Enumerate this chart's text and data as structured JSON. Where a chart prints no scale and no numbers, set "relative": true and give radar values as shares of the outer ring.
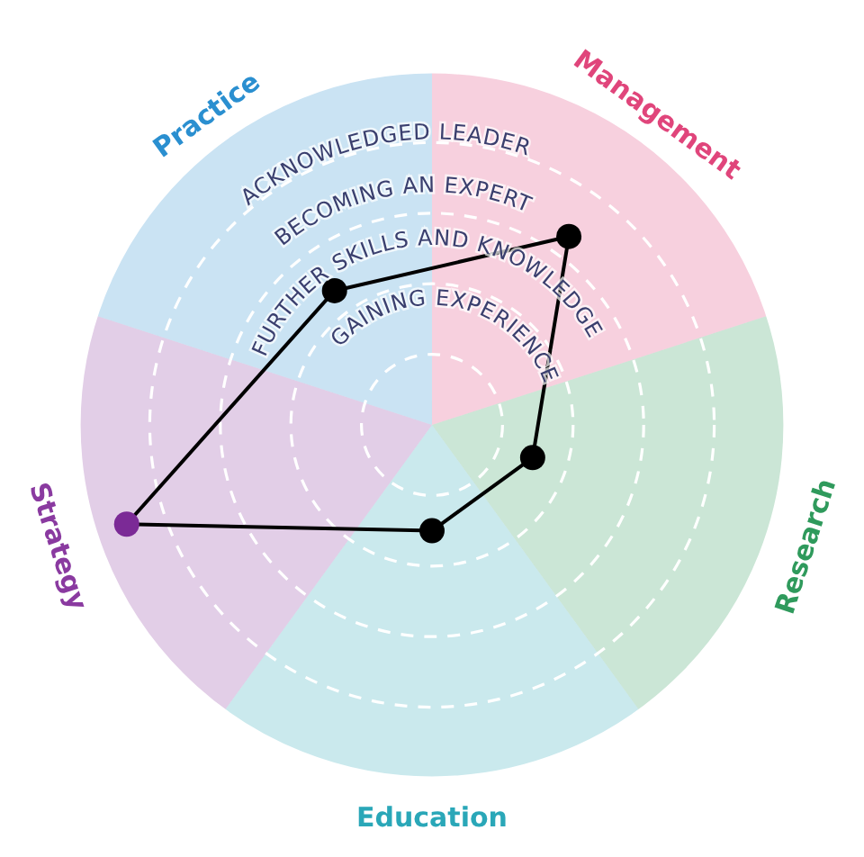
{
  "chart_data": {
    "type": "radar",
    "relative": true,
    "grid": true,
    "marker": "circle",
    "line_style": "solid",
    "categories": [
      "Management",
      "Research",
      "Education",
      "Strategy",
      "Practice"
    ],
    "colors": [
      "#e0457b",
      "#2f9a5c",
      "#2aa7b8",
      "#8a3aa0",
      "#2a8fd0"
    ],
    "annotations": [
      "GAINING EXPERIENCE",
      "FURTHER SKILLS AND KNOWLEDGE",
      "BECOMING AN EXPERT",
      "ACKNOWLEDGED LEADER"
    ],
    "series": [
      {
        "color": "#000000",
        "colors": [
          "#000000",
          "#000000",
          "#000000",
          "#7b2a96",
          "#000000"
        ],
        "values": [
          0.66,
          0.3,
          0.3,
          0.91,
          0.47
        ]
      }
    ]
  }
}
